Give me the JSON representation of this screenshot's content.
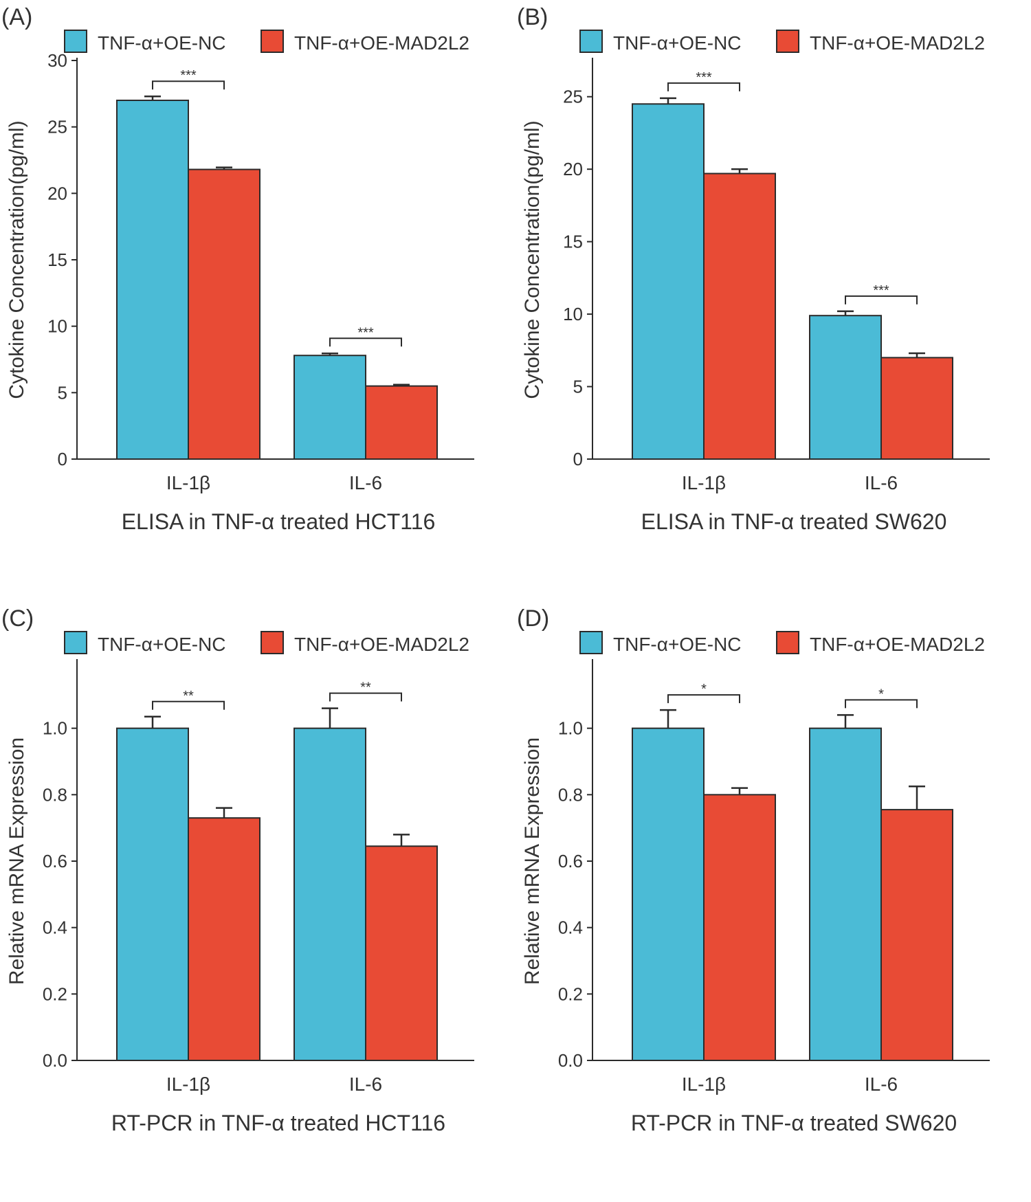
{
  "legend": [
    "TNF-α+OE-NC",
    "TNF-α+OE-MAD2L2"
  ],
  "colors": {
    "nc": "#4bbbd6",
    "mad": "#e84b35",
    "stroke": "#2b2b2b"
  },
  "chart_data": [
    {
      "type": "bar",
      "panel_label": "(A)",
      "title": "ELISA in TNF-α treated HCT116",
      "ylabel": "Cytokine Concentration(pg/ml)",
      "categories": [
        "IL-1β",
        "IL-6"
      ],
      "ylim": [
        0,
        30
      ],
      "yticks": [
        0,
        5,
        10,
        15,
        20,
        25,
        30
      ],
      "tick_labels": [
        "0",
        "5",
        "10",
        "15",
        "20",
        "25",
        "30"
      ],
      "series": [
        {
          "name": "TNF-α+OE-NC",
          "values": [
            27.0,
            7.8
          ],
          "errors": [
            0.3,
            0.15
          ]
        },
        {
          "name": "TNF-α+OE-MAD2L2",
          "values": [
            21.8,
            5.5
          ],
          "errors": [
            0.15,
            0.1
          ]
        }
      ],
      "significance": [
        "***",
        "***"
      ]
    },
    {
      "type": "bar",
      "panel_label": "(B)",
      "title": "ELISA in TNF-α treated SW620",
      "ylabel": "Cytokine Concentration(pg/ml)",
      "categories": [
        "IL-1β",
        "IL-6"
      ],
      "ylim": [
        0,
        27.5
      ],
      "yticks": [
        0,
        5,
        10,
        15,
        20,
        25
      ],
      "tick_labels": [
        "0",
        "5",
        "10",
        "15",
        "20",
        "25"
      ],
      "series": [
        {
          "name": "TNF-α+OE-NC",
          "values": [
            24.5,
            9.9
          ],
          "errors": [
            0.4,
            0.3
          ]
        },
        {
          "name": "TNF-α+OE-MAD2L2",
          "values": [
            19.7,
            7.0
          ],
          "errors": [
            0.3,
            0.3
          ]
        }
      ],
      "significance": [
        "***",
        "***"
      ]
    },
    {
      "type": "bar",
      "panel_label": "(C)",
      "title": "RT-PCR in TNF-α treated HCT116",
      "ylabel": "Relative mRNA Expression",
      "categories": [
        "IL-1β",
        "IL-6"
      ],
      "ylim": [
        0,
        1.2
      ],
      "yticks": [
        0.0,
        0.2,
        0.4,
        0.6,
        0.8,
        1.0
      ],
      "tick_labels": [
        "0.0",
        "0.2",
        "0.4",
        "0.6",
        "0.8",
        "1.0"
      ],
      "series": [
        {
          "name": "TNF-α+OE-NC",
          "values": [
            1.0,
            1.0
          ],
          "errors": [
            0.035,
            0.06
          ]
        },
        {
          "name": "TNF-α+OE-MAD2L2",
          "values": [
            0.73,
            0.645
          ],
          "errors": [
            0.03,
            0.035
          ]
        }
      ],
      "significance": [
        "**",
        "**"
      ]
    },
    {
      "type": "bar",
      "panel_label": "(D)",
      "title": "RT-PCR in TNF-α treated SW620",
      "ylabel": "Relative mRNA Expression",
      "categories": [
        "IL-1β",
        "IL-6"
      ],
      "ylim": [
        0,
        1.2
      ],
      "yticks": [
        0.0,
        0.2,
        0.4,
        0.6,
        0.8,
        1.0
      ],
      "tick_labels": [
        "0.0",
        "0.2",
        "0.4",
        "0.6",
        "0.8",
        "1.0"
      ],
      "series": [
        {
          "name": "TNF-α+OE-NC",
          "values": [
            1.0,
            1.0
          ],
          "errors": [
            0.055,
            0.04
          ]
        },
        {
          "name": "TNF-α+OE-MAD2L2",
          "values": [
            0.8,
            0.755
          ],
          "errors": [
            0.02,
            0.07
          ]
        }
      ],
      "significance": [
        "*",
        "*"
      ]
    }
  ]
}
